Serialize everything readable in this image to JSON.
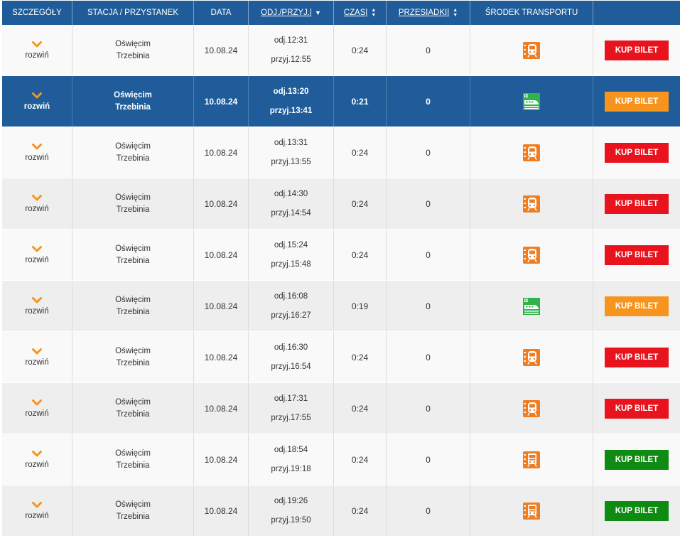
{
  "header": {
    "details": "SZCZEGÓŁY",
    "station": "STACJA / PRZYSTANEK",
    "date": "DATA",
    "dep_arr": "ODJ./PRZYJ.",
    "time": "CZAS",
    "transfers": "PRZESIADKI",
    "transport": "ŚRODEK TRANSPORTU",
    "sort_separator": "|"
  },
  "colors": {
    "header_bg": "#1f5c99",
    "selected_row_bg": "#1f5c99",
    "buy_red": "#e8131c",
    "buy_orange": "#f7941d",
    "buy_green": "#0f8a12",
    "chevron": "#f7941d",
    "icon_orange": "#ef7d22",
    "icon_ic_green": "#2fb34a"
  },
  "rows": [
    {
      "expand": "rozwiń",
      "from": "Oświęcim",
      "to": "Trzebinia",
      "date": "10.08.24",
      "dep": "odj.12:31",
      "arr": "przyj.12:55",
      "duration": "0:24",
      "transfers": "0",
      "icon": "koleje-malopolskie-train-icon",
      "buy_label": "KUP BILET",
      "buy_color": "red",
      "selected": false
    },
    {
      "expand": "rozwiń",
      "from": "Oświęcim",
      "to": "Trzebinia",
      "date": "10.08.24",
      "dep": "odj.13:20",
      "arr": "przyj.13:41",
      "duration": "0:21",
      "transfers": "0",
      "icon": "intercity-train-icon",
      "buy_label": "KUP BILET",
      "buy_color": "orange",
      "selected": true
    },
    {
      "expand": "rozwiń",
      "from": "Oświęcim",
      "to": "Trzebinia",
      "date": "10.08.24",
      "dep": "odj.13:31",
      "arr": "przyj.13:55",
      "duration": "0:24",
      "transfers": "0",
      "icon": "koleje-malopolskie-train-icon",
      "buy_label": "KUP BILET",
      "buy_color": "red",
      "selected": false
    },
    {
      "expand": "rozwiń",
      "from": "Oświęcim",
      "to": "Trzebinia",
      "date": "10.08.24",
      "dep": "odj.14:30",
      "arr": "przyj.14:54",
      "duration": "0:24",
      "transfers": "0",
      "icon": "koleje-malopolskie-train-icon",
      "buy_label": "KUP BILET",
      "buy_color": "red",
      "selected": false
    },
    {
      "expand": "rozwiń",
      "from": "Oświęcim",
      "to": "Trzebinia",
      "date": "10.08.24",
      "dep": "odj.15:24",
      "arr": "przyj.15:48",
      "duration": "0:24",
      "transfers": "0",
      "icon": "koleje-malopolskie-train-icon",
      "buy_label": "KUP BILET",
      "buy_color": "red",
      "selected": false
    },
    {
      "expand": "rozwiń",
      "from": "Oświęcim",
      "to": "Trzebinia",
      "date": "10.08.24",
      "dep": "odj.16:08",
      "arr": "przyj.16:27",
      "duration": "0:19",
      "transfers": "0",
      "icon": "intercity-train-icon",
      "buy_label": "KUP BILET",
      "buy_color": "orange",
      "selected": false
    },
    {
      "expand": "rozwiń",
      "from": "Oświęcim",
      "to": "Trzebinia",
      "date": "10.08.24",
      "dep": "odj.16:30",
      "arr": "przyj.16:54",
      "duration": "0:24",
      "transfers": "0",
      "icon": "koleje-malopolskie-train-icon",
      "buy_label": "KUP BILET",
      "buy_color": "red",
      "selected": false
    },
    {
      "expand": "rozwiń",
      "from": "Oświęcim",
      "to": "Trzebinia",
      "date": "10.08.24",
      "dep": "odj.17:31",
      "arr": "przyj.17:55",
      "duration": "0:24",
      "transfers": "0",
      "icon": "koleje-malopolskie-train-icon",
      "buy_label": "KUP BILET",
      "buy_color": "red",
      "selected": false
    },
    {
      "expand": "rozwiń",
      "from": "Oświęcim",
      "to": "Trzebinia",
      "date": "10.08.24",
      "dep": "odj.18:54",
      "arr": "przyj.19:18",
      "duration": "0:24",
      "transfers": "0",
      "icon": "polregio-train-icon",
      "buy_label": "KUP BILET",
      "buy_color": "green",
      "selected": false
    },
    {
      "expand": "rozwiń",
      "from": "Oświęcim",
      "to": "Trzebinia",
      "date": "10.08.24",
      "dep": "odj.19:26",
      "arr": "przyj.19:50",
      "duration": "0:24",
      "transfers": "0",
      "icon": "polregio-train-icon",
      "buy_label": "KUP BILET",
      "buy_color": "green",
      "selected": false
    }
  ]
}
